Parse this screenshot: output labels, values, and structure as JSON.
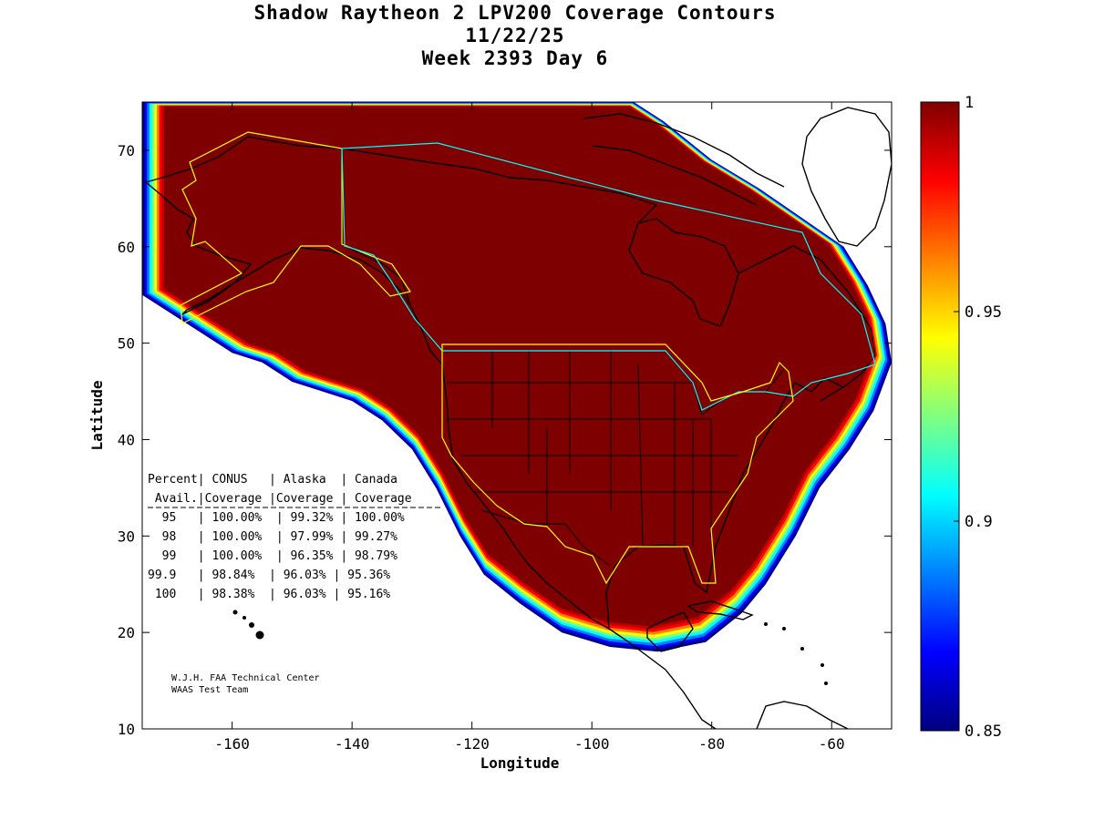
{
  "title": {
    "line1": "Shadow Raytheon 2 LPV200 Coverage Contours",
    "line2": "11/22/25",
    "line3": "Week 2393 Day 6"
  },
  "axes": {
    "xlabel": "Longitude",
    "ylabel": "Latitude",
    "xlim": [
      -175,
      -50
    ],
    "ylim": [
      10,
      75
    ],
    "xticks": [
      -160,
      -140,
      -120,
      -100,
      -80,
      -60
    ],
    "yticks": [
      10,
      20,
      30,
      40,
      50,
      60,
      70
    ]
  },
  "colorbar": {
    "range": [
      0.85,
      1
    ],
    "ticks": [
      {
        "label": "1",
        "value": 1.0
      },
      {
        "label": "0.95",
        "value": 0.95
      },
      {
        "label": "0.9",
        "value": 0.9
      },
      {
        "label": "0.85",
        "value": 0.85
      }
    ],
    "colors": [
      "#00007f",
      "#0000ff",
      "#0080ff",
      "#00ffff",
      "#80ff80",
      "#ffff00",
      "#ff8000",
      "#ff0000",
      "#7f0000"
    ]
  },
  "table": {
    "header1": "Percent| CONUS   | Alaska  | Canada",
    "header2": " Avail.|Coverage |Coverage | Coverage",
    "rows": [
      "  95   | 100.00%  | 99.32% | 100.00%",
      "  98   | 100.00%  | 97.99% | 99.27%",
      "  99   | 100.00%  | 96.35% | 98.79%",
      "99.9   | 98.84%  | 96.03% | 95.36%",
      " 100   | 98.38%  | 96.03% | 95.16%"
    ]
  },
  "credit": {
    "line1": "W.J.H. FAA Technical Center",
    "line2": "WAAS Test Team"
  },
  "chart_data": {
    "type": "heatmap",
    "title": "Shadow Raytheon 2 LPV200 Coverage Contours",
    "xlabel": "Longitude",
    "ylabel": "Latitude",
    "xlim": [
      -175,
      -50
    ],
    "ylim": [
      10,
      75
    ],
    "color_range": [
      0.85,
      1
    ],
    "coverage_boundary": [
      [
        -175,
        55
      ],
      [
        -170,
        53
      ],
      [
        -165,
        51
      ],
      [
        -160,
        49
      ],
      [
        -155,
        48
      ],
      [
        -150,
        46
      ],
      [
        -145,
        45
      ],
      [
        -140,
        44
      ],
      [
        -135,
        42
      ],
      [
        -130,
        39
      ],
      [
        -126,
        35
      ],
      [
        -122,
        30
      ],
      [
        -118,
        26
      ],
      [
        -112,
        23
      ],
      [
        -105,
        20
      ],
      [
        -97,
        18.5
      ],
      [
        -89,
        18
      ],
      [
        -81,
        19
      ],
      [
        -75,
        22
      ],
      [
        -71,
        25
      ],
      [
        -66,
        30
      ],
      [
        -62,
        35
      ],
      [
        -57,
        39
      ],
      [
        -53,
        43
      ],
      [
        -50,
        48
      ],
      [
        -51,
        52
      ],
      [
        -54,
        56
      ],
      [
        -58,
        60
      ],
      [
        -65,
        63
      ],
      [
        -72,
        66
      ],
      [
        -80,
        69
      ],
      [
        -88,
        73
      ],
      [
        -93,
        75
      ],
      [
        -175,
        75
      ]
    ],
    "table_rows": [
      {
        "percent": "95",
        "conus": "100.00%",
        "alaska": "99.32%",
        "canada": "100.00%"
      },
      {
        "percent": "98",
        "conus": "100.00%",
        "alaska": "97.99%",
        "canada": "99.27%"
      },
      {
        "percent": "99",
        "conus": "100.00%",
        "alaska": "96.35%",
        "canada": "98.79%"
      },
      {
        "percent": "99.9",
        "conus": "98.84%",
        "alaska": "96.03%",
        "canada": "95.36%"
      },
      {
        "percent": "100",
        "conus": "98.38%",
        "alaska": "96.03%",
        "canada": "95.16%"
      }
    ]
  }
}
